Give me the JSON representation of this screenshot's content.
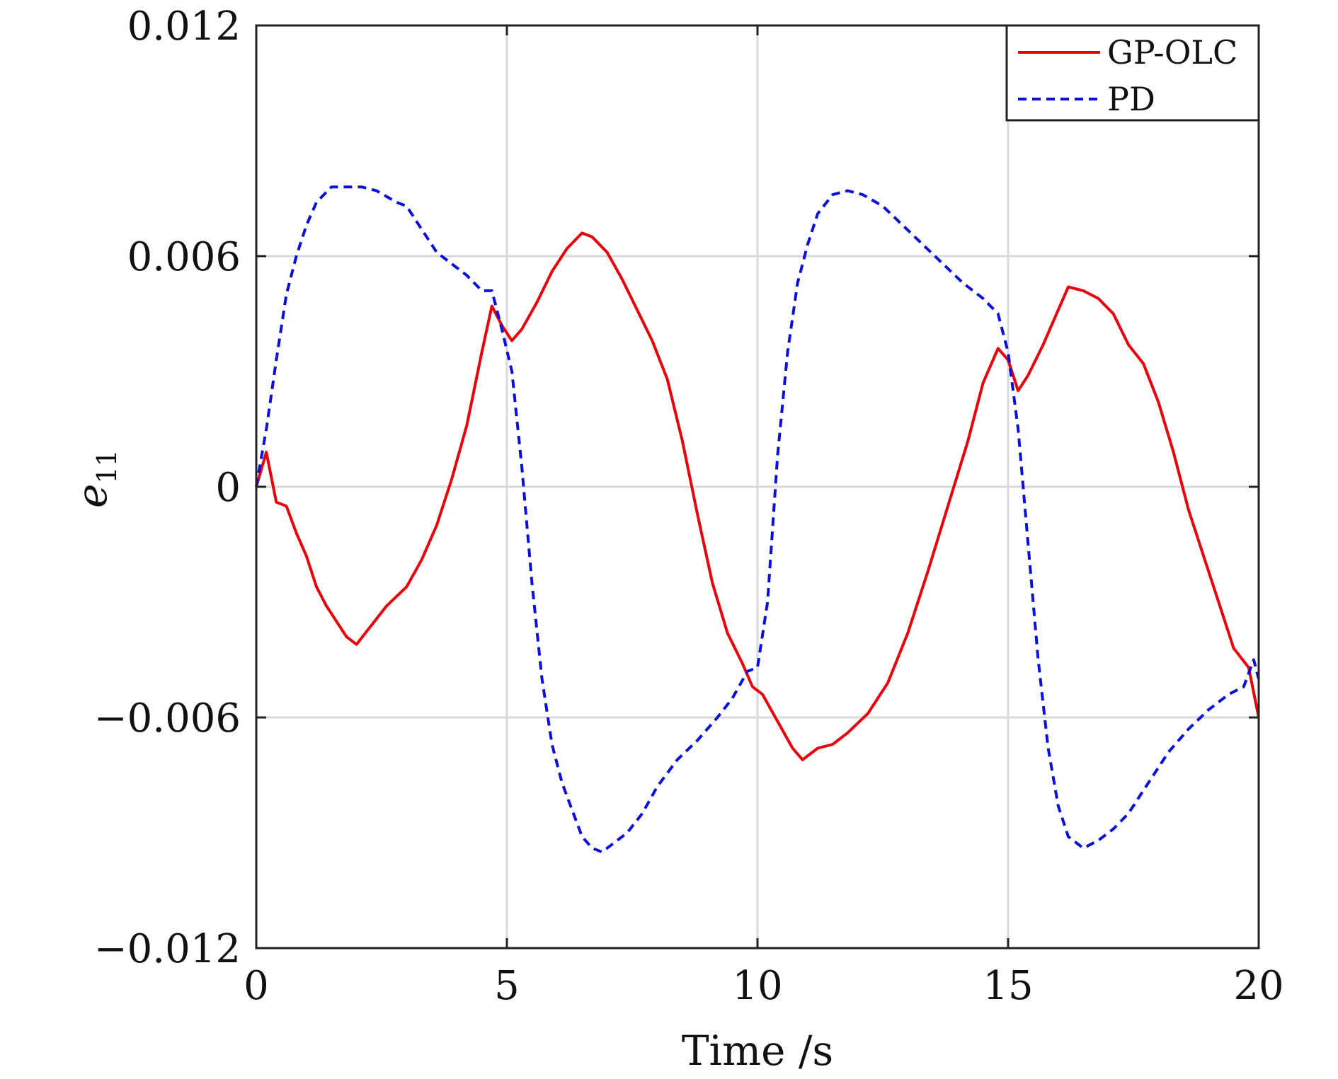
{
  "chart_data": {
    "type": "line",
    "xlabel": "Time /s",
    "ylabel": "e",
    "ylabel_subscript": "11",
    "xlim": [
      0,
      20
    ],
    "ylim": [
      -0.012,
      0.012
    ],
    "x_ticks": [
      "0",
      "5",
      "10",
      "15",
      "20"
    ],
    "y_ticks": [
      "−0.012",
      "−0.006",
      "0",
      "0.006",
      "0.012"
    ],
    "x_tick_values": [
      0,
      5,
      10,
      15,
      20
    ],
    "y_tick_values": [
      -0.012,
      -0.006,
      0,
      0.006,
      0.012
    ],
    "grid": true,
    "legend_position": "top-right",
    "series": [
      {
        "name": "GP-OLC",
        "color": "#e8000b",
        "style": "solid",
        "x": [
          0,
          0.2,
          0.4,
          0.6,
          0.8,
          1.0,
          1.2,
          1.4,
          1.6,
          1.8,
          2.0,
          2.3,
          2.6,
          3.0,
          3.3,
          3.6,
          3.9,
          4.2,
          4.5,
          4.7,
          4.9,
          5.1,
          5.3,
          5.6,
          5.9,
          6.2,
          6.5,
          6.7,
          7.0,
          7.3,
          7.6,
          7.9,
          8.2,
          8.5,
          8.8,
          9.1,
          9.4,
          9.7,
          9.9,
          10.1,
          10.4,
          10.7,
          10.9,
          11.2,
          11.5,
          11.8,
          12.2,
          12.6,
          13.0,
          13.4,
          13.8,
          14.2,
          14.5,
          14.8,
          15.0,
          15.2,
          15.4,
          15.7,
          16.0,
          16.2,
          16.5,
          16.8,
          17.1,
          17.4,
          17.7,
          18.0,
          18.3,
          18.6,
          18.9,
          19.2,
          19.5,
          19.8,
          20.0
        ],
        "y": [
          0,
          0.0009,
          -0.0004,
          -0.0005,
          -0.0012,
          -0.0018,
          -0.0026,
          -0.0031,
          -0.0035,
          -0.0039,
          -0.0041,
          -0.0036,
          -0.0031,
          -0.0026,
          -0.0019,
          -0.001,
          0.0002,
          0.0016,
          0.0035,
          0.0047,
          0.0042,
          0.0038,
          0.0041,
          0.0048,
          0.0056,
          0.0062,
          0.0066,
          0.0065,
          0.0061,
          0.0054,
          0.0046,
          0.0038,
          0.0028,
          0.0012,
          -0.0007,
          -0.0025,
          -0.0038,
          -0.0046,
          -0.0052,
          -0.0054,
          -0.0061,
          -0.0068,
          -0.0071,
          -0.0068,
          -0.0067,
          -0.0064,
          -0.0059,
          -0.0051,
          -0.0038,
          -0.0022,
          -0.0005,
          0.0012,
          0.0027,
          0.0036,
          0.0033,
          0.0025,
          0.0029,
          0.0037,
          0.0046,
          0.0052,
          0.0051,
          0.0049,
          0.0045,
          0.0037,
          0.0032,
          0.0022,
          0.0009,
          -0.0006,
          -0.0018,
          -0.003,
          -0.0042,
          -0.0047,
          -0.006
        ]
      },
      {
        "name": "PD",
        "color": "#0a10d8",
        "style": "dashed",
        "x": [
          0,
          0.2,
          0.4,
          0.6,
          0.8,
          1.0,
          1.2,
          1.5,
          1.8,
          2.1,
          2.4,
          2.8,
          3.0,
          3.3,
          3.6,
          3.9,
          4.2,
          4.5,
          4.7,
          4.9,
          5.1,
          5.3,
          5.5,
          5.7,
          5.9,
          6.1,
          6.3,
          6.5,
          6.7,
          6.9,
          7.1,
          7.4,
          7.7,
          8.0,
          8.4,
          8.8,
          9.2,
          9.5,
          9.8,
          10.0,
          10.2,
          10.4,
          10.6,
          10.8,
          11.0,
          11.2,
          11.5,
          11.8,
          12.1,
          12.5,
          12.9,
          13.3,
          13.7,
          14.1,
          14.5,
          14.8,
          15.0,
          15.2,
          15.4,
          15.6,
          15.8,
          16.0,
          16.2,
          16.5,
          16.8,
          17.1,
          17.4,
          17.8,
          18.2,
          18.6,
          19.0,
          19.4,
          19.7,
          19.9,
          20.0
        ],
        "y": [
          0,
          0.0015,
          0.0033,
          0.005,
          0.006,
          0.0068,
          0.0074,
          0.0078,
          0.0078,
          0.0078,
          0.0077,
          0.0074,
          0.0073,
          0.0067,
          0.0061,
          0.0058,
          0.0055,
          0.0051,
          0.0051,
          0.0041,
          0.003,
          0.0005,
          -0.0025,
          -0.005,
          -0.0067,
          -0.0077,
          -0.0084,
          -0.0091,
          -0.0094,
          -0.0095,
          -0.0093,
          -0.009,
          -0.0085,
          -0.0078,
          -0.0071,
          -0.0066,
          -0.006,
          -0.0055,
          -0.0048,
          -0.0047,
          -0.003,
          0.0008,
          0.0035,
          0.0053,
          0.0063,
          0.0071,
          0.0076,
          0.0077,
          0.0076,
          0.0073,
          0.0068,
          0.0063,
          0.0058,
          0.0053,
          0.0049,
          0.0045,
          0.0035,
          0.0015,
          -0.0015,
          -0.0045,
          -0.0068,
          -0.0083,
          -0.0091,
          -0.0094,
          -0.0092,
          -0.0089,
          -0.0085,
          -0.0077,
          -0.0069,
          -0.0063,
          -0.0058,
          -0.0054,
          -0.0052,
          -0.0045,
          -0.005
        ]
      }
    ]
  }
}
